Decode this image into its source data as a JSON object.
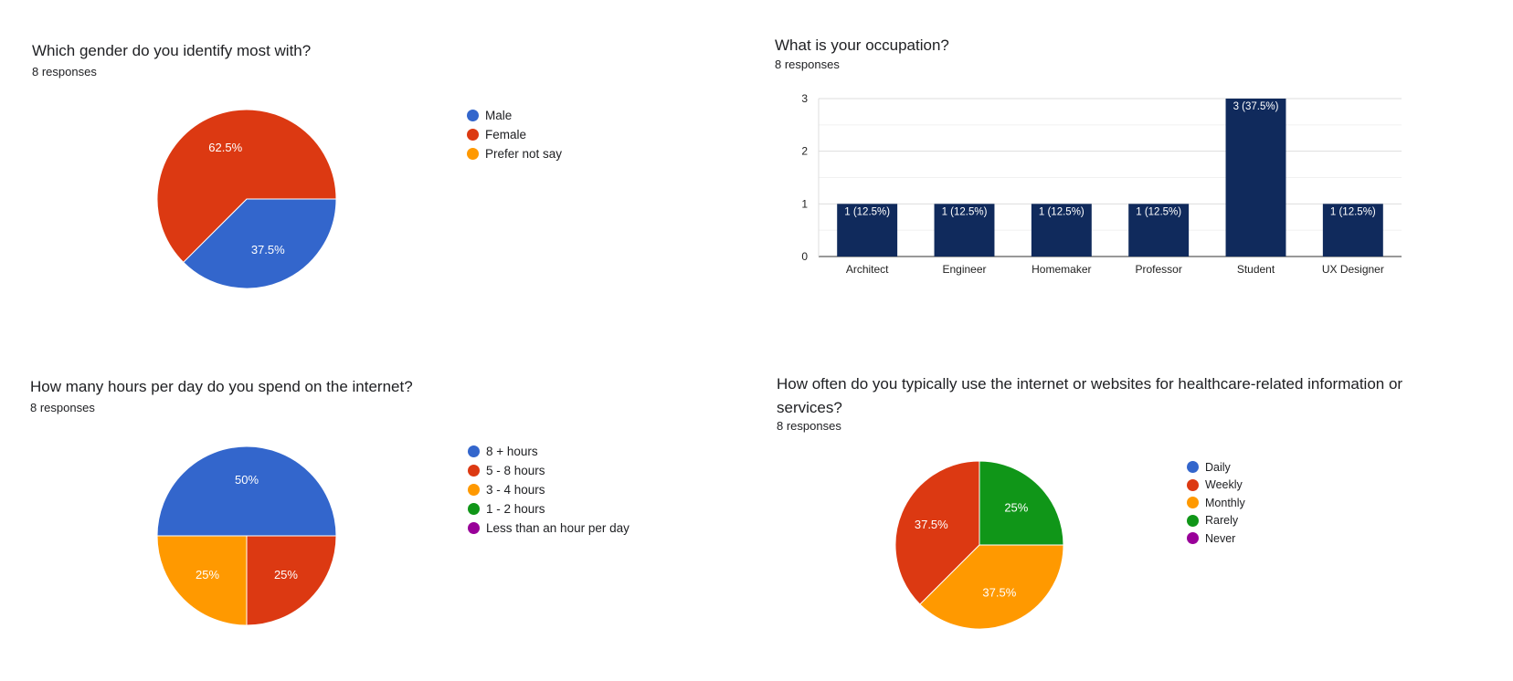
{
  "chart_data": [
    {
      "type": "pie",
      "title": "Which gender do you identify most with?",
      "subtitle": "8 responses",
      "slices": [
        {
          "label": "Male",
          "value": 37.5,
          "display": "37.5%",
          "color": "#3366cc"
        },
        {
          "label": "Female",
          "value": 62.5,
          "display": "62.5%",
          "color": "#dc3912"
        },
        {
          "label": "Prefer not say",
          "value": 0,
          "display": "",
          "color": "#ff9900"
        }
      ]
    },
    {
      "type": "bar",
      "title": "What is your occupation?",
      "subtitle": "8 responses",
      "categories": [
        "Architect",
        "Engineer",
        "Homemaker",
        "Professor",
        "Student",
        "UX Designer"
      ],
      "values": [
        1,
        1,
        1,
        1,
        3,
        1
      ],
      "data_labels": [
        "1 (12.5%)",
        "1 (12.5%)",
        "1 (12.5%)",
        "1 (12.5%)",
        "3 (37.5%)",
        "1 (12.5%)"
      ],
      "ylim": [
        0,
        3
      ],
      "yticks": [
        "0",
        "1",
        "2",
        "3"
      ],
      "color": "#102a5c",
      "grid": true
    },
    {
      "type": "pie",
      "title": "How many hours per day do you spend on the internet?",
      "subtitle": "8 responses",
      "slices": [
        {
          "label": "8 + hours",
          "value": 50,
          "display": "50%",
          "color": "#3366cc"
        },
        {
          "label": "5 - 8 hours",
          "value": 25,
          "display": "25%",
          "color": "#dc3912"
        },
        {
          "label": "3 - 4 hours",
          "value": 25,
          "display": "25%",
          "color": "#ff9900"
        },
        {
          "label": "1 - 2 hours",
          "value": 0,
          "display": "",
          "color": "#109618"
        },
        {
          "label": "Less than an hour per day",
          "value": 0,
          "display": "",
          "color": "#990099"
        }
      ]
    },
    {
      "type": "pie",
      "title": "How often do you typically use the internet or websites for healthcare-related information or services?",
      "subtitle": "8 responses",
      "slices": [
        {
          "label": "Daily",
          "value": 0,
          "display": "",
          "color": "#3366cc"
        },
        {
          "label": "Weekly",
          "value": 37.5,
          "display": "37.5%",
          "color": "#dc3912"
        },
        {
          "label": "Monthly",
          "value": 37.5,
          "display": "37.5%",
          "color": "#ff9900"
        },
        {
          "label": "Rarely",
          "value": 25,
          "display": "25%",
          "color": "#109618"
        },
        {
          "label": "Never",
          "value": 0,
          "display": "",
          "color": "#990099"
        }
      ]
    }
  ]
}
